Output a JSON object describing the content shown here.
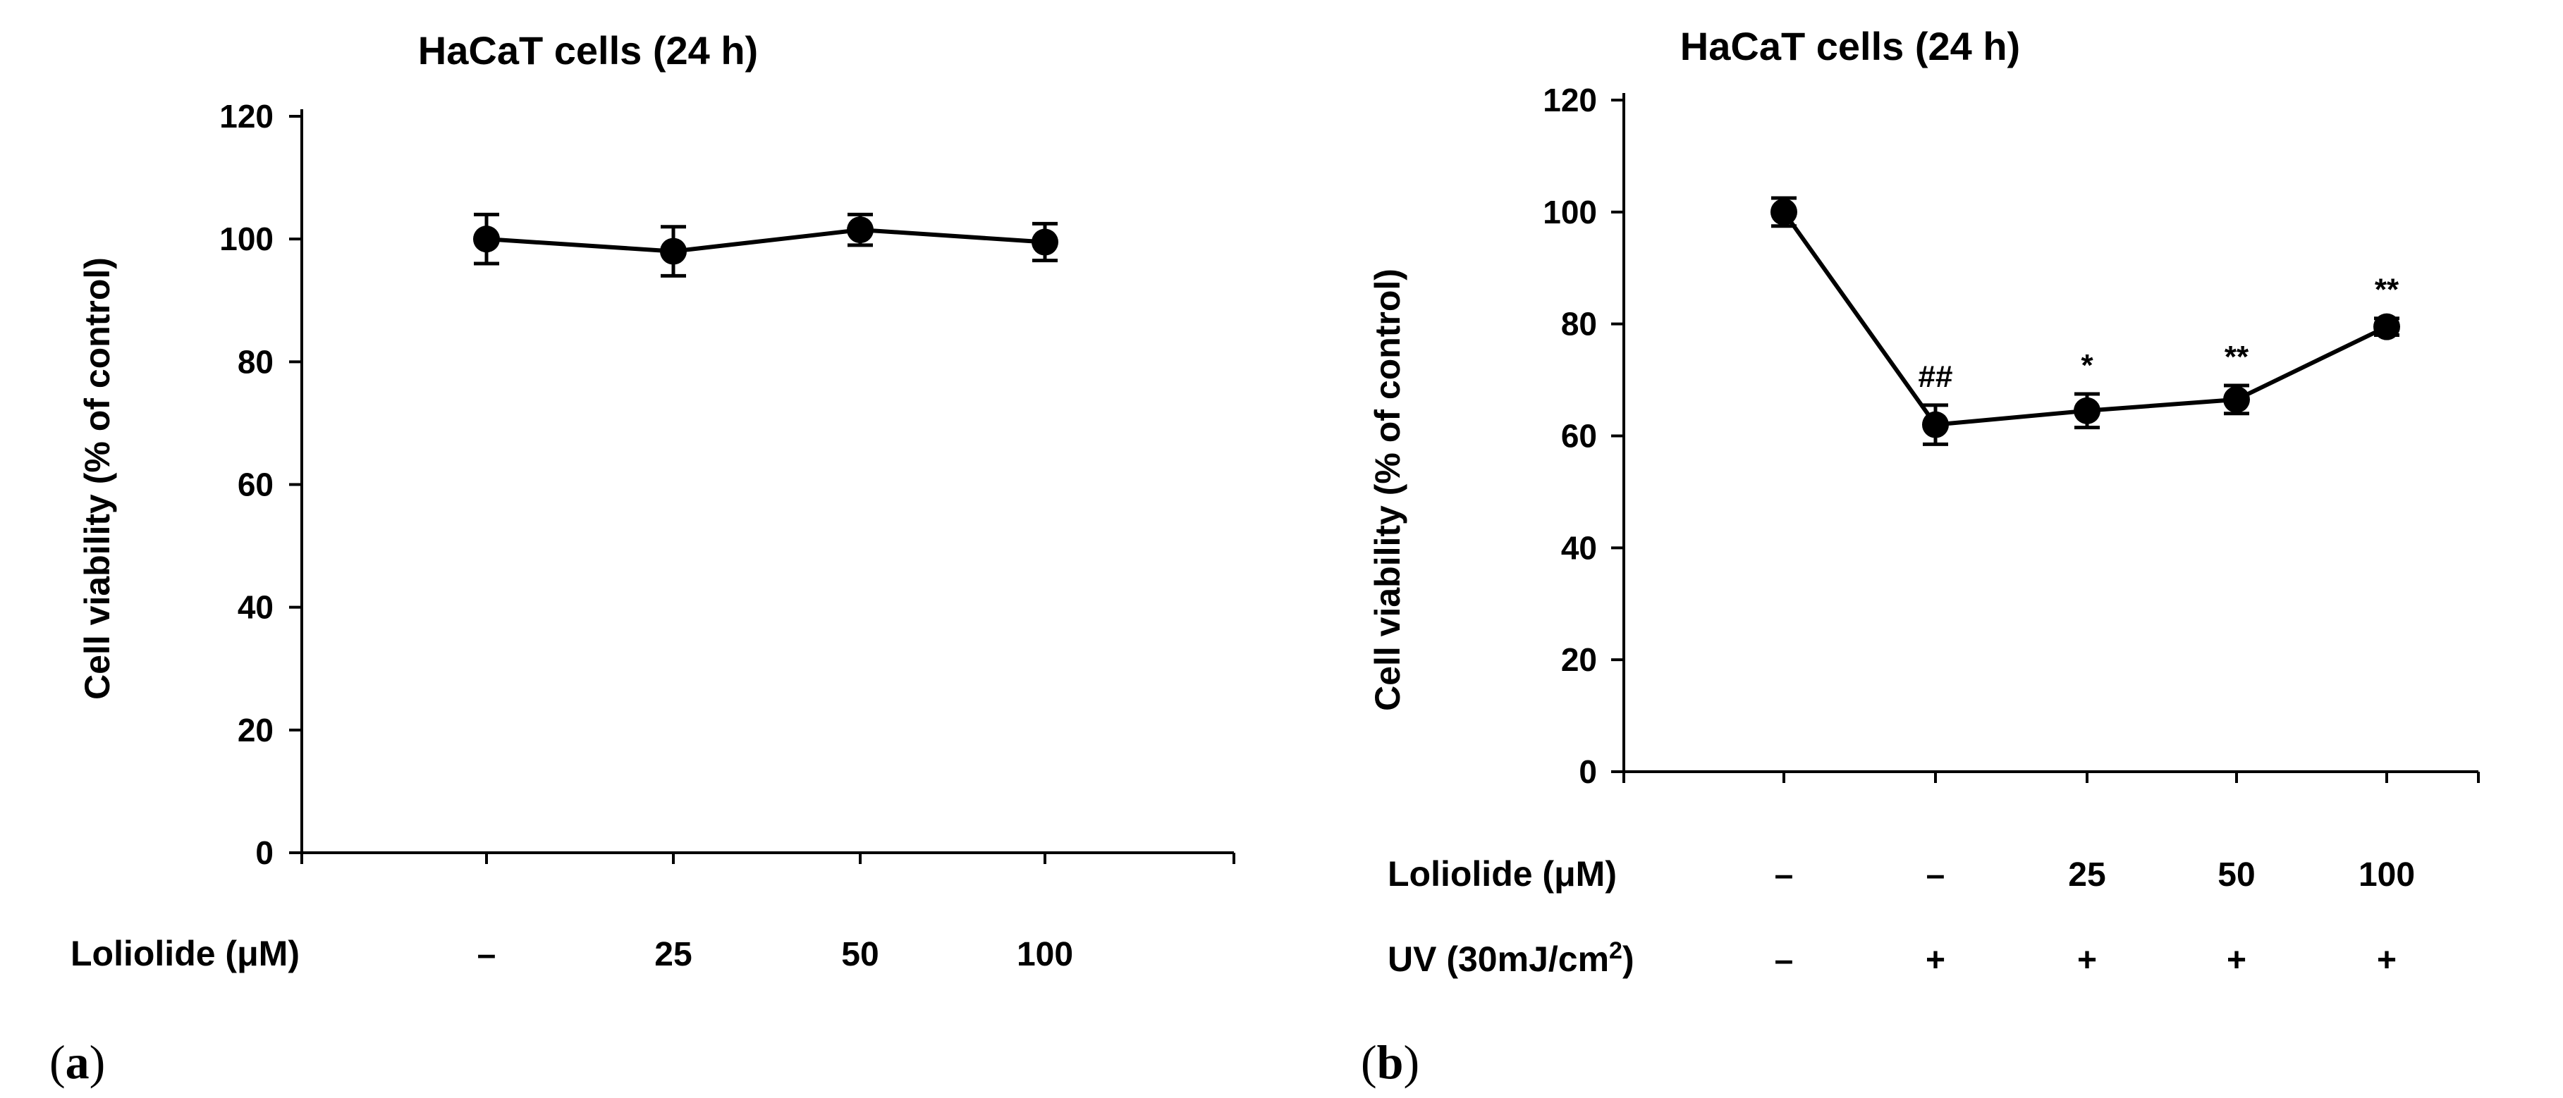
{
  "chart_data": [
    {
      "type": "line",
      "panel_label": "(a)",
      "title": "HaCaT cells (24 h)",
      "ylabel": "Cell viability (% of control)",
      "ylim": [
        0,
        120
      ],
      "yticks": [
        "0",
        "20",
        "40",
        "60",
        "80",
        "100",
        "120"
      ],
      "row_labels": [
        {
          "label": "Loliolide (μM)",
          "values": [
            "–",
            "25",
            "50",
            "100"
          ]
        }
      ],
      "series": [
        {
          "name": "Cell viability",
          "values": [
            100,
            98,
            101.5,
            99.5
          ],
          "errors": [
            4,
            4,
            2.5,
            3
          ]
        }
      ],
      "annotations": [
        "",
        "",
        "",
        ""
      ]
    },
    {
      "type": "line",
      "panel_label": "(b)",
      "title": "HaCaT cells (24 h)",
      "ylabel": "Cell viability (% of control)",
      "ylim": [
        0,
        120
      ],
      "yticks": [
        "0",
        "20",
        "40",
        "60",
        "80",
        "100",
        "120"
      ],
      "row_labels": [
        {
          "label": "Loliolide (μM)",
          "values": [
            "–",
            "–",
            "25",
            "50",
            "100"
          ]
        },
        {
          "label": "UV (30mJ/cm",
          "superscript": "2",
          "label_end": ")",
          "values": [
            "–",
            "+",
            "+",
            "+",
            "+"
          ]
        }
      ],
      "series": [
        {
          "name": "Cell viability",
          "values": [
            100,
            62,
            64.5,
            66.5,
            79.5
          ],
          "errors": [
            2.5,
            3.5,
            3,
            2.5,
            1.5
          ]
        }
      ],
      "annotations": [
        "",
        "##",
        "*",
        "**",
        "**"
      ]
    }
  ]
}
